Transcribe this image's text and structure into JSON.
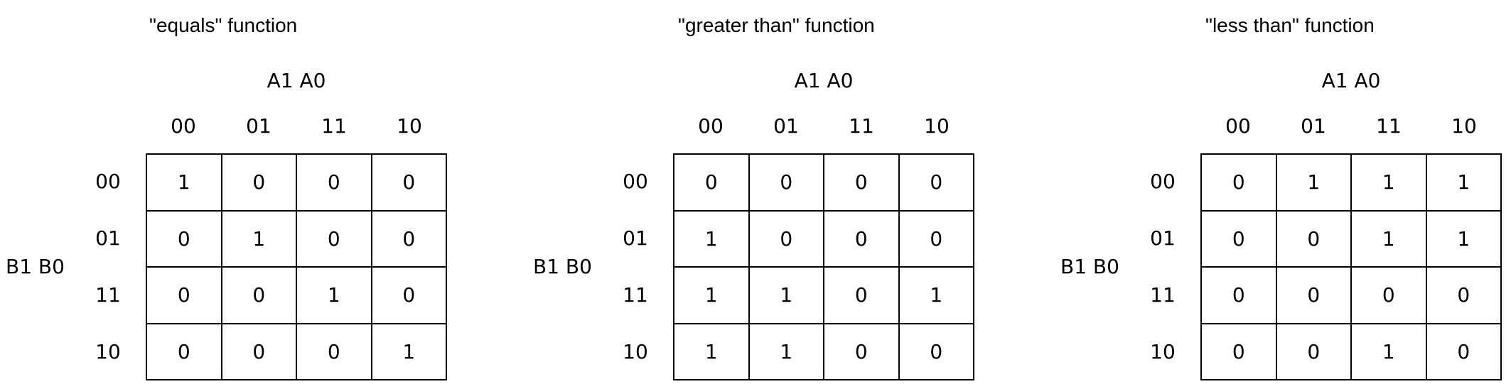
{
  "column_variables": "A1 A0",
  "row_variables": "B1 B0",
  "column_headers": [
    "00",
    "01",
    "11",
    "10"
  ],
  "row_headers": [
    "00",
    "01",
    "11",
    "10"
  ],
  "maps": [
    {
      "title": "\"equals\" function",
      "cells": [
        [
          "1",
          "0",
          "0",
          "0"
        ],
        [
          "0",
          "1",
          "0",
          "0"
        ],
        [
          "0",
          "0",
          "1",
          "0"
        ],
        [
          "0",
          "0",
          "0",
          "1"
        ]
      ]
    },
    {
      "title": "\"greater than\" function",
      "cells": [
        [
          "0",
          "0",
          "0",
          "0"
        ],
        [
          "1",
          "0",
          "0",
          "0"
        ],
        [
          "1",
          "1",
          "0",
          "1"
        ],
        [
          "1",
          "1",
          "0",
          "0"
        ]
      ]
    },
    {
      "title": "\"less than\" function",
      "cells": [
        [
          "0",
          "1",
          "1",
          "1"
        ],
        [
          "0",
          "0",
          "1",
          "1"
        ],
        [
          "0",
          "0",
          "0",
          "0"
        ],
        [
          "0",
          "0",
          "1",
          "0"
        ]
      ]
    }
  ]
}
